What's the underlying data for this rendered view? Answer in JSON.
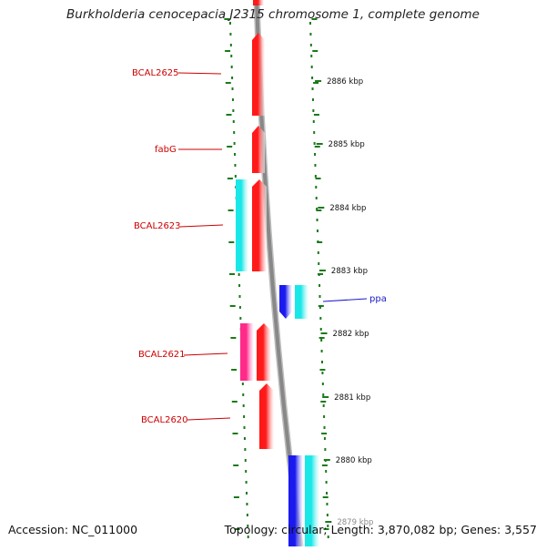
{
  "title": "Burkholderia cenocepacia J2315 chromosome 1, complete genome",
  "footer": {
    "accession": "Accession: NC_011000",
    "summary": "Topology: circular; Length: 3,870,082 bp; Genes: 3,557"
  },
  "colors": {
    "red_gene": "#ff1a1a",
    "cyan_gene": "#1ae8e8",
    "blue_gene": "#1a1aee",
    "pink_gene": "#ff2a8a",
    "tick_green": "#1a7a1a",
    "label_red": "#cc0000",
    "label_blue": "#1a1acc",
    "backbone": "#888888"
  },
  "scale_ticks": [
    {
      "label": "2886 kbp"
    },
    {
      "label": "2885 kbp"
    },
    {
      "label": "2884 kbp"
    },
    {
      "label": "2883 kbp"
    },
    {
      "label": "2882 kbp"
    },
    {
      "label": "2881 kbp"
    },
    {
      "label": "2880 kbp"
    },
    {
      "label": "2879 kbp"
    }
  ],
  "gene_labels": [
    {
      "name": "BCAL2625",
      "color": "#cc0000"
    },
    {
      "name": "fabG",
      "color": "#cc0000"
    },
    {
      "name": "BCAL2623",
      "color": "#cc0000"
    },
    {
      "name": "ppa",
      "color": "#1a1acc"
    },
    {
      "name": "BCAL2621",
      "color": "#cc0000"
    },
    {
      "name": "BCAL2620",
      "color": "#cc0000"
    }
  ]
}
